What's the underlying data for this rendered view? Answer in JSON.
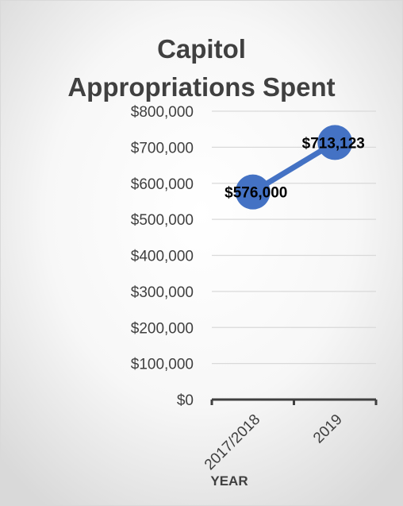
{
  "chart_data": {
    "type": "line",
    "title_lines": [
      "Capitol",
      "Appropriations Spent"
    ],
    "xlabel": "YEAR",
    "ylabel": "",
    "categories": [
      "2017/2018",
      "2019"
    ],
    "series": [
      {
        "values": [
          576000,
          713123
        ],
        "data_labels": [
          "$576,000",
          "$713,123"
        ]
      }
    ],
    "ylim": [
      0,
      800000
    ],
    "yticks": [
      0,
      100000,
      200000,
      300000,
      400000,
      500000,
      600000,
      700000,
      800000
    ],
    "ytick_labels": [
      "$0",
      "$100,000",
      "$200,000",
      "$300,000",
      "$400,000",
      "$500,000",
      "$600,000",
      "$700,000",
      "$800,000"
    ],
    "grid": true,
    "legend": "none",
    "colors": {
      "series": "#4472c4",
      "grid": "#d9d9d9",
      "axis": "#404040",
      "text": "#404040",
      "label": "#000000"
    }
  }
}
